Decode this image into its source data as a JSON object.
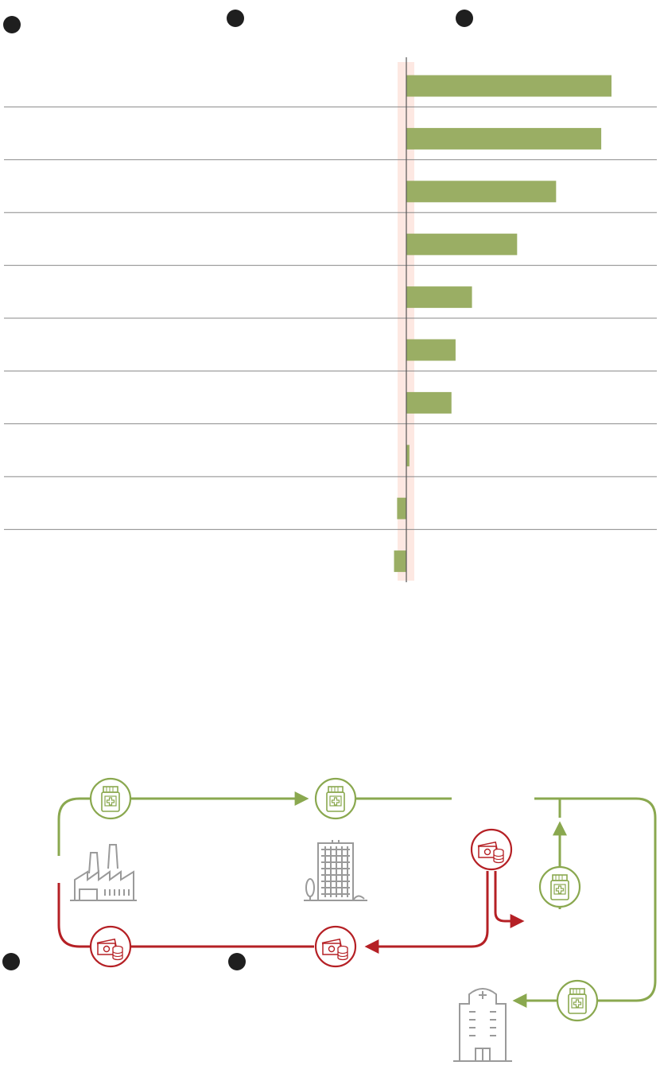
{
  "colors": {
    "bar": "#9aae64",
    "zero_band": "#fde8e2",
    "axis": "#555555",
    "divider": "#888888",
    "goods": "#8aa84f",
    "money": "#b52025",
    "building": "#9a9a9a",
    "step_dot": "#1f1f1f"
  },
  "chart_data": {
    "type": "bar",
    "orientation": "horizontal",
    "categories": [
      "",
      "",
      "",
      "",
      "",
      "",
      "",
      "",
      "",
      ""
    ],
    "values": [
      100,
      95,
      73,
      54,
      32,
      24,
      22,
      1.5,
      -4.5,
      -6
    ],
    "xlim": [
      -7,
      120
    ],
    "title": "",
    "xlabel": "",
    "ylabel": ""
  },
  "flow": {
    "step_markers": 5,
    "nodes": [
      {
        "id": "factory",
        "icon": "factory-icon"
      },
      {
        "id": "office",
        "icon": "office-building-icon"
      },
      {
        "id": "hospital",
        "icon": "hospital-icon"
      }
    ],
    "tokens": [
      {
        "kind": "medicine-bottle-icon"
      },
      {
        "kind": "medicine-bottle-icon"
      },
      {
        "kind": "medicine-bottle-icon"
      },
      {
        "kind": "medicine-bottle-icon"
      },
      {
        "kind": "money-icon"
      },
      {
        "kind": "money-icon"
      },
      {
        "kind": "money-icon"
      }
    ]
  }
}
